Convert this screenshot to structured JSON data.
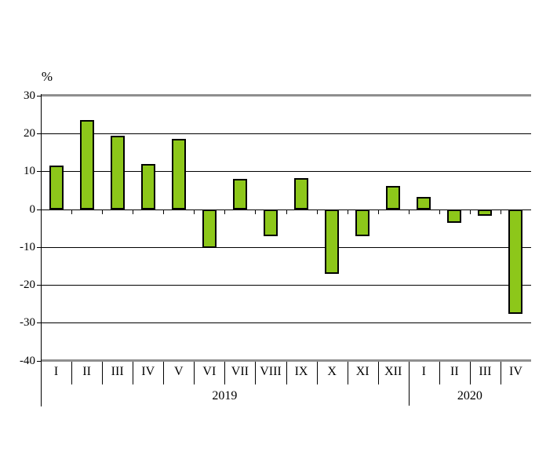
{
  "chart_data": {
    "type": "bar",
    "title": "",
    "ylabel": "%",
    "xlabel": "",
    "ylim": [
      -40,
      30
    ],
    "yticks": [
      30,
      20,
      10,
      0,
      -10,
      -20,
      -30,
      -40
    ],
    "categories": [
      "I",
      "II",
      "III",
      "IV",
      "V",
      "VI",
      "VII",
      "VIII",
      "IX",
      "X",
      "XI",
      "XII",
      "I",
      "II",
      "III",
      "IV"
    ],
    "groups": [
      {
        "label": "2019",
        "count": 12
      },
      {
        "label": "2020",
        "count": 4
      }
    ],
    "values": [
      11.5,
      23.5,
      19.3,
      11.8,
      18.5,
      -10.0,
      8.0,
      -6.9,
      8.2,
      -16.8,
      -7.0,
      6.2,
      3.2,
      -3.4,
      -1.5,
      -27.4
    ],
    "grid": true,
    "legend": false,
    "layout_hints": {
      "gridline_levels": [
        20,
        10,
        0,
        -10,
        -20,
        -30
      ],
      "frame_levels": [
        30,
        -40
      ]
    },
    "colors": {
      "bar_fill": "#8dc71a",
      "bar_border": "#000000",
      "gridline": "#000000",
      "frame": "#8f8f8f",
      "text": "#000000",
      "background": "#ffffff"
    }
  }
}
